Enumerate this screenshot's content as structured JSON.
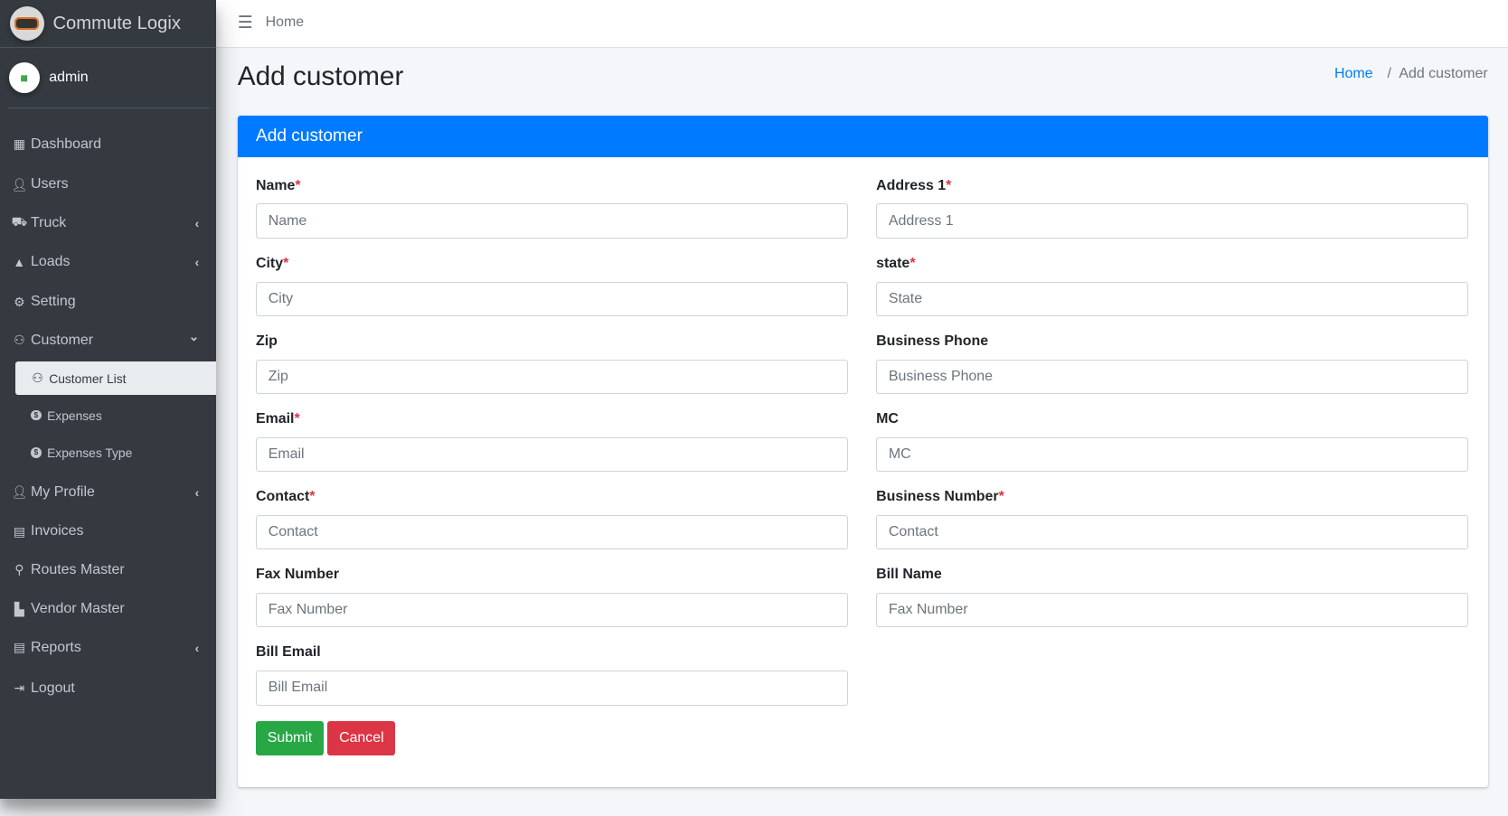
{
  "brand": {
    "name": "Commute Logix"
  },
  "user": {
    "name": "admin"
  },
  "sidebar": {
    "items": [
      {
        "label": "Dashboard",
        "icon": "dashboard-icon"
      },
      {
        "label": "Users",
        "icon": "user-icon"
      },
      {
        "label": "Truck",
        "icon": "truck-icon",
        "chevron": "left"
      },
      {
        "label": "Loads",
        "icon": "weight-icon",
        "chevron": "left"
      },
      {
        "label": "Setting",
        "icon": "gear-icon"
      },
      {
        "label": "Customer",
        "icon": "users-icon",
        "chevron": "down"
      },
      {
        "label": "Customer List",
        "icon": "users-icon",
        "active": true
      },
      {
        "label": "Expenses",
        "icon": "dollar-circle-icon"
      },
      {
        "label": "Expenses Type",
        "icon": "dollar-circle-icon"
      },
      {
        "label": "My Profile",
        "icon": "user-icon",
        "chevron": "left"
      },
      {
        "label": "Invoices",
        "icon": "file-icon"
      },
      {
        "label": "Routes Master",
        "icon": "route-icon"
      },
      {
        "label": "Vendor Master",
        "icon": "industry-icon"
      },
      {
        "label": "Reports",
        "icon": "file-icon",
        "chevron": "left"
      },
      {
        "label": "Logout",
        "icon": "sign-out-icon"
      }
    ]
  },
  "topbar": {
    "home": "Home"
  },
  "page": {
    "title": "Add customer"
  },
  "breadcrumb": {
    "home": "Home",
    "current": "Add customer"
  },
  "card": {
    "title": "Add customer"
  },
  "form": {
    "fields": [
      {
        "label": "Name",
        "required": true,
        "placeholder": "Name",
        "value": ""
      },
      {
        "label": "Address 1",
        "required": true,
        "placeholder": "Address 1",
        "value": ""
      },
      {
        "label": "City",
        "required": true,
        "placeholder": "City",
        "value": ""
      },
      {
        "label": "state",
        "required": true,
        "placeholder": "State",
        "value": ""
      },
      {
        "label": "Zip",
        "required": false,
        "placeholder": "Zip",
        "value": ""
      },
      {
        "label": "Business Phone",
        "required": false,
        "placeholder": "Business Phone",
        "value": ""
      },
      {
        "label": "Email",
        "required": true,
        "placeholder": "Email",
        "value": ""
      },
      {
        "label": "MC",
        "required": false,
        "placeholder": "MC",
        "value": ""
      },
      {
        "label": "Contact",
        "required": true,
        "placeholder": "Contact",
        "value": ""
      },
      {
        "label": "Business Number",
        "required": true,
        "placeholder": "Contact",
        "value": ""
      },
      {
        "label": "Fax Number",
        "required": false,
        "placeholder": "Fax Number",
        "value": ""
      },
      {
        "label": "Bill Name",
        "required": false,
        "placeholder": "Fax Number",
        "value": ""
      },
      {
        "label": "Bill Email",
        "required": false,
        "placeholder": "Bill Email",
        "value": ""
      }
    ],
    "required_mark": "*",
    "submit": "Submit",
    "cancel": "Cancel"
  },
  "colors": {
    "primary": "#007bff",
    "success": "#28a745",
    "danger": "#dc3545",
    "sidebar": "#343a40"
  }
}
